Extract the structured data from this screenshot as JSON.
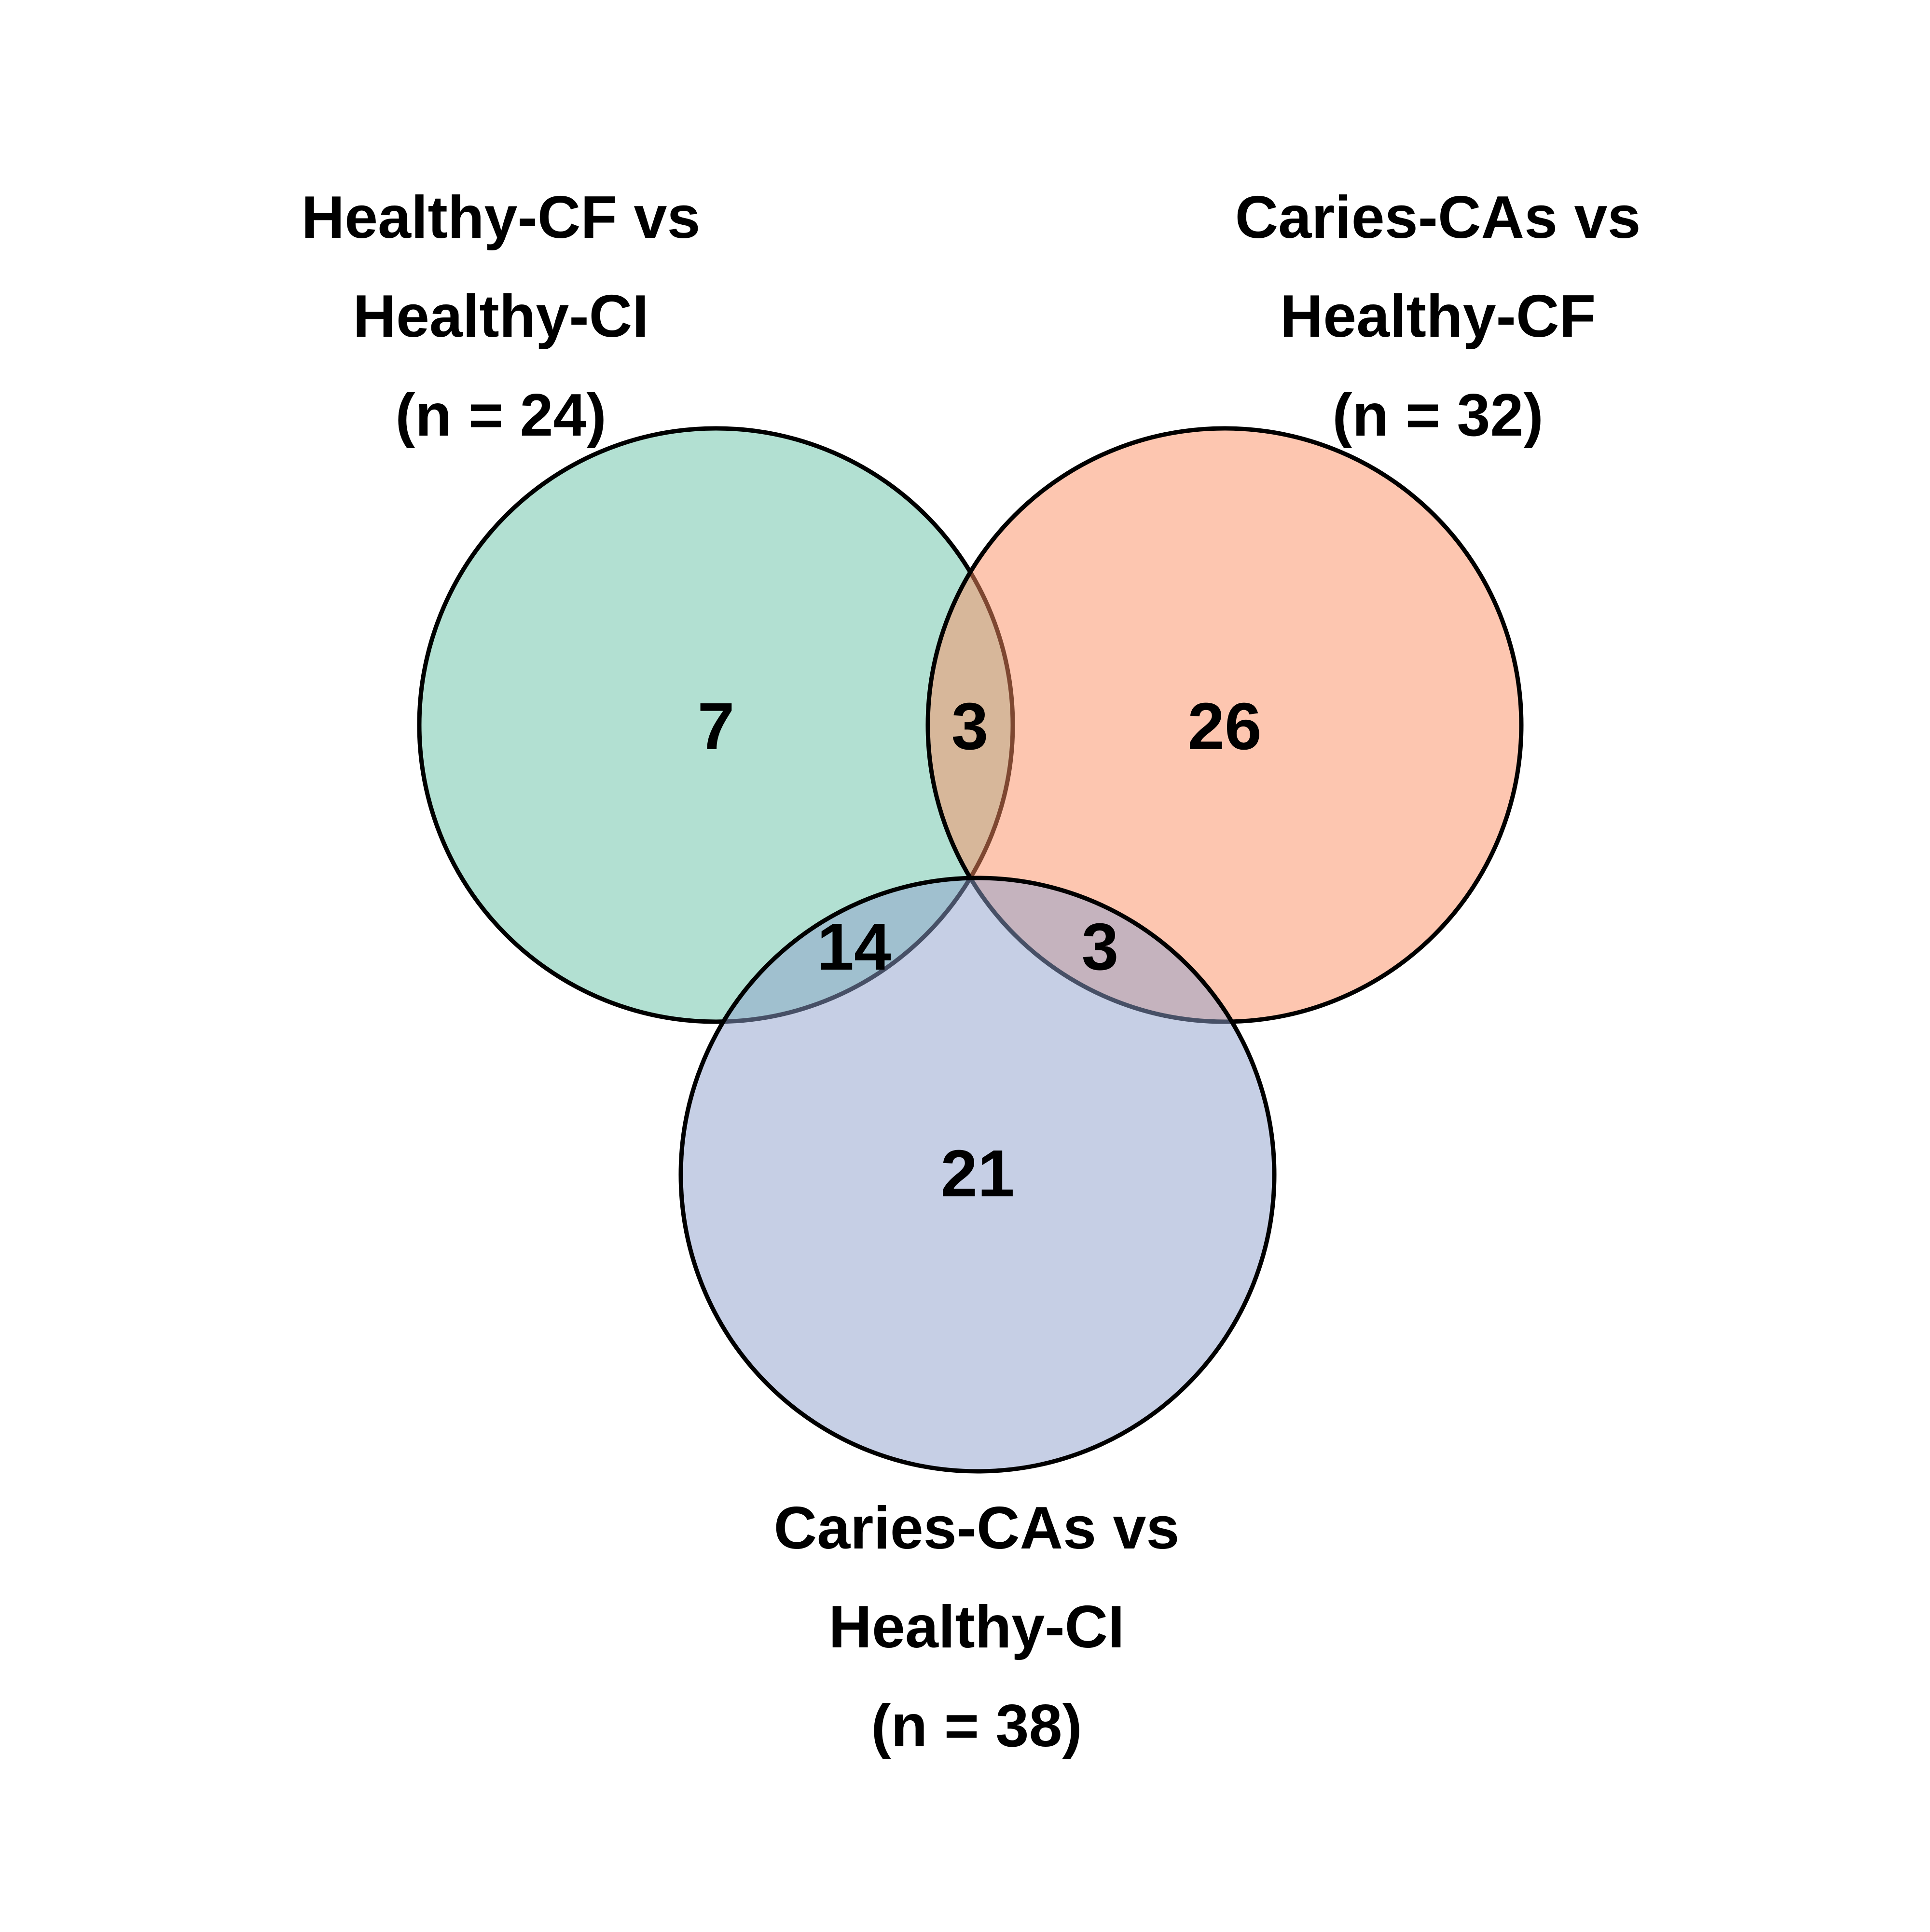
{
  "sets": [
    {
      "id": "A",
      "label_lines": [
        "Healthy-CF vs",
        "Healthy-CI",
        "(n = 24)"
      ],
      "color": "#66c2a5"
    },
    {
      "id": "B",
      "label_lines": [
        "Caries-CAs vs",
        "Healthy-CF",
        "(n = 32)"
      ],
      "color": "#fc8d62"
    },
    {
      "id": "C",
      "label_lines": [
        "Caries-CAs vs",
        "Healthy-CI",
        "(n = 38)"
      ],
      "color": "#8da0cb"
    }
  ],
  "regions": {
    "only_A": "7",
    "A_and_B": "3",
    "only_B": "26",
    "A_and_C": "14",
    "B_and_C": "3",
    "only_C": "21"
  },
  "style": {
    "fill_opacity": 0.5,
    "stroke_color": "#000000"
  }
}
